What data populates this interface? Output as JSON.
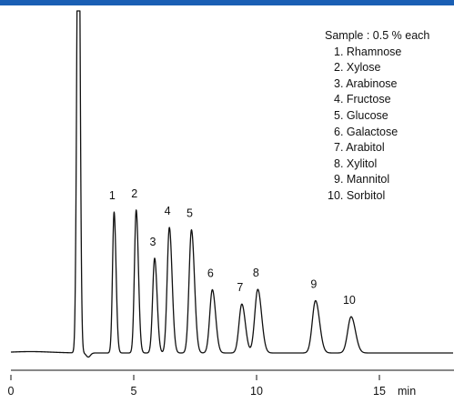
{
  "colors": {
    "header_bar": "#1a5fb4",
    "trace": "#111111"
  },
  "legend": {
    "title": "Sample : 0.5 % each",
    "items": [
      "1. Rhamnose",
      "2. Xylose",
      "3. Arabinose",
      "4. Fructose",
      "5. Glucose",
      "6. Galactose",
      "7. Arabitol",
      "8. Xylitol",
      "9. Mannitol",
      "10. Sorbitol"
    ]
  },
  "chart_data": {
    "type": "line",
    "title": "",
    "xlabel": "min",
    "ylabel": "",
    "xlim": [
      0,
      18
    ],
    "ylim": [
      0,
      1
    ],
    "x_ticks": [
      0,
      5,
      10,
      15
    ],
    "x_tick_labels": [
      "0",
      "5",
      "10",
      "15"
    ],
    "grid": false,
    "legend_placement": "top-right",
    "solvent_peak": {
      "x": 2.75,
      "height": 1.0
    },
    "peaks": [
      {
        "label": "1",
        "x": 4.2,
        "height": 0.412
      },
      {
        "label": "2",
        "x": 5.1,
        "height": 0.418
      },
      {
        "label": "3",
        "x": 5.85,
        "height": 0.277
      },
      {
        "label": "4",
        "x": 6.45,
        "height": 0.367
      },
      {
        "label": "5",
        "x": 7.35,
        "height": 0.36
      },
      {
        "label": "6",
        "x": 8.2,
        "height": 0.185
      },
      {
        "label": "7",
        "x": 9.4,
        "height": 0.143
      },
      {
        "label": "8",
        "x": 10.05,
        "height": 0.186
      },
      {
        "label": "9",
        "x": 12.4,
        "height": 0.153
      },
      {
        "label": "10",
        "x": 13.85,
        "height": 0.106
      }
    ]
  }
}
